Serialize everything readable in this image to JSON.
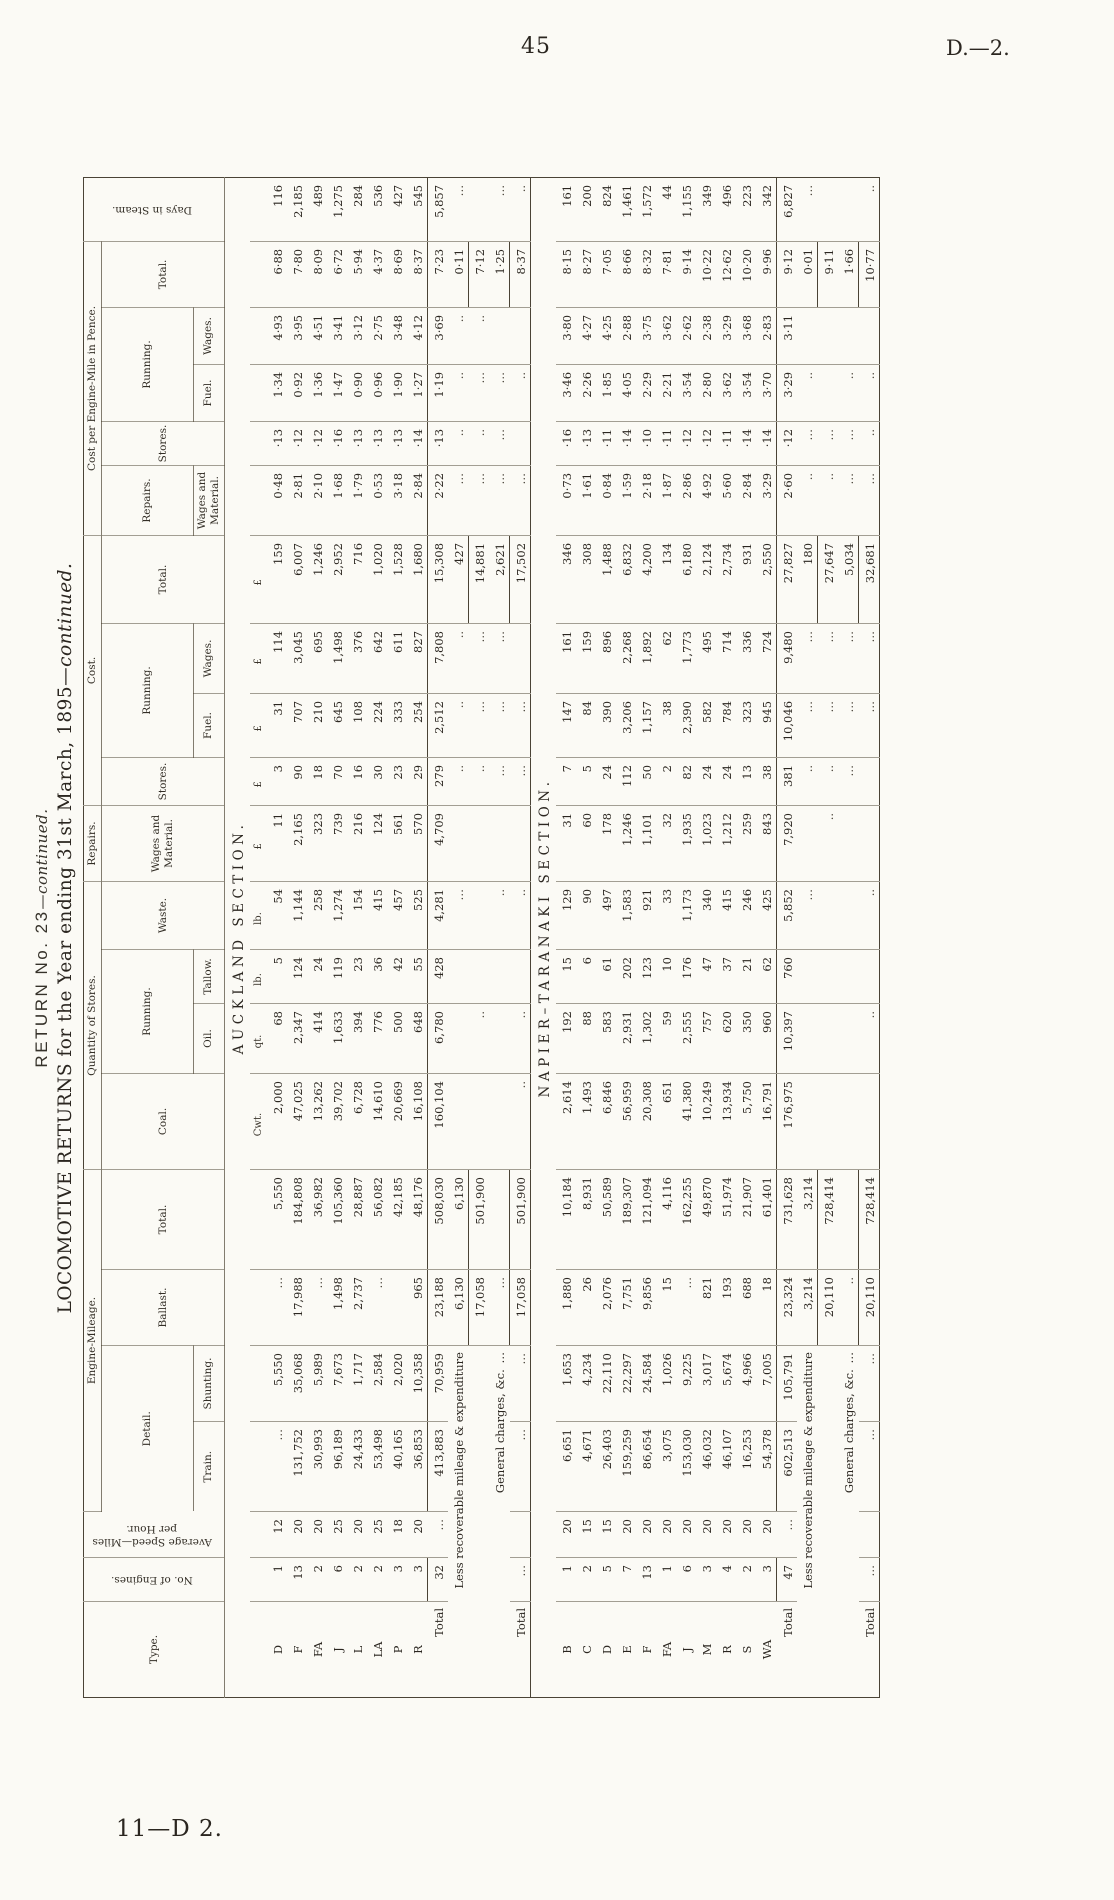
{
  "page": {
    "number": "45",
    "ref": "D.—2.",
    "footer": "11—D  2."
  },
  "title": {
    "line1_main": "RETURN  No.  23",
    "line1_cont": "—continued.",
    "line2_main": "LOCOMOTIVE RETURNS for the Year ending 31st March, 1895",
    "line2_cont": "—continued."
  },
  "table": {
    "head": {
      "type": "Type.",
      "engines": "No. of Engines.",
      "speed": "Average Speed—Miles per Hour.",
      "mileage": "Engine-Mileage.",
      "detail": "Detail.",
      "train": "Train.",
      "shunting": "Shunting.",
      "ballast": "Ballast.",
      "total": "Total.",
      "qty": "Quantity of Stores.",
      "coal": "Coal.",
      "running": "Running.",
      "oil": "Oil.",
      "tallow": "Tallow.",
      "waste": "Waste.",
      "repairs": "Repairs.",
      "wam": "Wages and Material.",
      "cost": "Cost.",
      "stores": "Stores.",
      "fuel": "Fuel.",
      "wages": "Wages.",
      "pence": "Cost per Engine-Mile in Pence.",
      "days": "Days in Steam."
    },
    "units": [
      "",
      "",
      "",
      "",
      "",
      "",
      "",
      "Cwt.",
      "qt.",
      "lb.",
      "lb.",
      "£",
      "£",
      "£",
      "£",
      "£",
      "",
      "",
      "",
      "",
      "",
      ""
    ],
    "sections": [
      {
        "caption": "AUCKLAND SECTION.",
        "show_units": true,
        "rows": [
          [
            "D",
            "1",
            "12",
            "…",
            "5,550",
            "…",
            "5,550",
            "2,000",
            "68",
            "5",
            "54",
            "11",
            "3",
            "31",
            "114",
            "159",
            "0·48",
            "·13",
            "1·34",
            "4·93",
            "6·88",
            "116"
          ],
          [
            "F",
            "13",
            "20",
            "131,752",
            "35,068",
            "17,988",
            "184,808",
            "47,025",
            "2,347",
            "124",
            "1,144",
            "2,165",
            "90",
            "707",
            "3,045",
            "6,007",
            "2·81",
            "·12",
            "0·92",
            "3·95",
            "7·80",
            "2,185"
          ],
          [
            "FA",
            "2",
            "20",
            "30,993",
            "5,989",
            "…",
            "36,982",
            "13,262",
            "414",
            "24",
            "258",
            "323",
            "18",
            "210",
            "695",
            "1,246",
            "2·10",
            "·12",
            "1·36",
            "4·51",
            "8·09",
            "489"
          ],
          [
            "J",
            "6",
            "25",
            "96,189",
            "7,673",
            "1,498",
            "105,360",
            "39,702",
            "1,633",
            "119",
            "1,274",
            "739",
            "70",
            "645",
            "1,498",
            "2,952",
            "1·68",
            "·16",
            "1·47",
            "3·41",
            "6·72",
            "1,275"
          ],
          [
            "L",
            "2",
            "20",
            "24,433",
            "1,717",
            "2,737",
            "28,887",
            "6,728",
            "394",
            "23",
            "154",
            "216",
            "16",
            "108",
            "376",
            "716",
            "1·79",
            "·13",
            "0·90",
            "3·12",
            "5·94",
            "284"
          ],
          [
            "LA",
            "2",
            "25",
            "53,498",
            "2,584",
            "…",
            "56,082",
            "14,610",
            "776",
            "36",
            "415",
            "124",
            "30",
            "224",
            "642",
            "1,020",
            "0·53",
            "·13",
            "0·96",
            "2·75",
            "4·37",
            "536"
          ],
          [
            "P",
            "3",
            "18",
            "40,165",
            "2,020",
            "",
            "42,185",
            "20,669",
            "500",
            "42",
            "457",
            "561",
            "23",
            "333",
            "611",
            "1,528",
            "3·18",
            "·13",
            "1·90",
            "3·48",
            "8·69",
            "427"
          ],
          [
            "R",
            "3",
            "20",
            "36,853",
            "10,358",
            "965",
            "48,176",
            "16,108",
            "648",
            "55",
            "525",
            "570",
            "29",
            "254",
            "827",
            "1,680",
            "2·84",
            "·14",
            "1·27",
            "4·12",
            "8·37",
            "545"
          ]
        ],
        "totals": [
          {
            "span": 1,
            "rule": true,
            "cells": [
              "Total",
              "32",
              "…",
              "413,883",
              "70,959",
              "23,188",
              "508,030",
              "160,104",
              "6,780",
              "428",
              "4,281",
              "4,709",
              "279",
              "2,512",
              "7,808",
              "15,308",
              "2·22",
              "·13",
              "1·19",
              "3·69",
              "7·23",
              "5,857"
            ]
          },
          {
            "span": 5,
            "rule": false,
            "cells": [
              "Less recoverable mileage & expenditure",
              "6,130",
              "6,130",
              "",
              "",
              "",
              "…",
              "",
              "..",
              "..",
              "..",
              "427",
              "…",
              "..",
              "..",
              "..",
              "0·11",
              "…"
            ]
          },
          {
            "span": 5,
            "rule": true,
            "cells": [
              "",
              "17,058",
              "501,900",
              "",
              "..",
              "",
              "",
              "",
              "..",
              "…",
              "…",
              "14,881",
              "…",
              "..",
              "…",
              "..",
              "7·12",
              ""
            ]
          },
          {
            "span": 5,
            "rule": false,
            "cells": [
              "General charges, &c. …",
              "…",
              "",
              "",
              "",
              "",
              "..",
              "",
              "…",
              "…",
              "…",
              "2,621",
              "…",
              "…",
              "…",
              "",
              "1·25",
              "…"
            ]
          },
          {
            "span": 1,
            "rule": true,
            "cells": [
              "Total",
              "…",
              "",
              "…",
              "…",
              "17,058",
              "501,900",
              "..",
              "..",
              "",
              "..",
              "",
              "…",
              "…",
              "",
              "17,502",
              "…",
              "",
              "..",
              "",
              "8·37",
              ".."
            ]
          }
        ]
      },
      {
        "caption": "NAPIER–TARANAKI SECTION.",
        "show_units": false,
        "rows": [
          [
            "B",
            "1",
            "20",
            "6,651",
            "1,653",
            "1,880",
            "10,184",
            "2,614",
            "192",
            "15",
            "129",
            "31",
            "7",
            "147",
            "161",
            "346",
            "0·73",
            "·16",
            "3·46",
            "3·80",
            "8·15",
            "161"
          ],
          [
            "C",
            "2",
            "15",
            "4,671",
            "4,234",
            "26",
            "8,931",
            "1,493",
            "88",
            "6",
            "90",
            "60",
            "5",
            "84",
            "159",
            "308",
            "1·61",
            "·13",
            "2·26",
            "4·27",
            "8·27",
            "200"
          ],
          [
            "D",
            "5",
            "15",
            "26,403",
            "22,110",
            "2,076",
            "50,589",
            "6,846",
            "583",
            "61",
            "497",
            "178",
            "24",
            "390",
            "896",
            "1,488",
            "0·84",
            "·11",
            "1·85",
            "4·25",
            "7·05",
            "824"
          ],
          [
            "E",
            "7",
            "20",
            "159,259",
            "22,297",
            "7,751",
            "189,307",
            "56,959",
            "2,931",
            "202",
            "1,583",
            "1,246",
            "112",
            "3,206",
            "2,268",
            "6,832",
            "1·59",
            "·14",
            "4·05",
            "2·88",
            "8·66",
            "1,461"
          ],
          [
            "F",
            "13",
            "20",
            "86,654",
            "24,584",
            "9,856",
            "121,094",
            "20,308",
            "1,302",
            "123",
            "921",
            "1,101",
            "50",
            "1,157",
            "1,892",
            "4,200",
            "2·18",
            "·10",
            "2·29",
            "3·75",
            "8·32",
            "1,572"
          ],
          [
            "FA",
            "1",
            "20",
            "3,075",
            "1,026",
            "15",
            "4,116",
            "651",
            "59",
            "10",
            "33",
            "32",
            "2",
            "38",
            "62",
            "134",
            "1·87",
            "·11",
            "2·21",
            "3·62",
            "7·81",
            "44"
          ],
          [
            "J",
            "6",
            "20",
            "153,030",
            "9,225",
            "…",
            "162,255",
            "41,380",
            "2,555",
            "176",
            "1,173",
            "1,935",
            "82",
            "2,390",
            "1,773",
            "6,180",
            "2·86",
            "·12",
            "3·54",
            "2·62",
            "9·14",
            "1,155"
          ],
          [
            "M",
            "3",
            "20",
            "46,032",
            "3,017",
            "821",
            "49,870",
            "10,249",
            "757",
            "47",
            "340",
            "1,023",
            "24",
            "582",
            "495",
            "2,124",
            "4·92",
            "·12",
            "2·80",
            "2·38",
            "10·22",
            "349"
          ],
          [
            "R",
            "4",
            "20",
            "46,107",
            "5,674",
            "193",
            "51,974",
            "13,934",
            "620",
            "37",
            "415",
            "1,212",
            "24",
            "784",
            "714",
            "2,734",
            "5·60",
            "·11",
            "3·62",
            "3·29",
            "12·62",
            "496"
          ],
          [
            "S",
            "2",
            "20",
            "16,253",
            "4,966",
            "688",
            "21,907",
            "5,750",
            "350",
            "21",
            "246",
            "259",
            "13",
            "323",
            "336",
            "931",
            "2·84",
            "·14",
            "3·54",
            "3·68",
            "10·20",
            "223"
          ],
          [
            "WA",
            "3",
            "20",
            "54,378",
            "7,005",
            "18",
            "61,401",
            "16,791",
            "960",
            "62",
            "425",
            "843",
            "38",
            "945",
            "724",
            "2,550",
            "3·29",
            "·14",
            "3·70",
            "2·83",
            "9·96",
            "342"
          ]
        ],
        "totals": [
          {
            "span": 1,
            "rule": true,
            "cells": [
              "Total",
              "47",
              "…",
              "602,513",
              "105,791",
              "23,324",
              "731,628",
              "176,975",
              "10,397",
              "760",
              "5,852",
              "7,920",
              "381",
              "10,046",
              "9,480",
              "27,827",
              "2·60",
              "·12",
              "3·29",
              "3·11",
              "9·12",
              "6,827"
            ]
          },
          {
            "span": 5,
            "rule": false,
            "cells": [
              "Less recoverable mileage & expenditure",
              "3,214",
              "3,214",
              "",
              "",
              "",
              "…",
              "",
              "..",
              "…",
              "…",
              "180",
              "..",
              "…",
              "..",
              "",
              "0·01",
              "…"
            ]
          },
          {
            "span": 5,
            "rule": true,
            "cells": [
              "",
              "20,110",
              "728,414",
              "",
              "",
              "",
              "",
              "..",
              "..",
              "…",
              "…",
              "27,647",
              "..",
              "…",
              "",
              "",
              "9·11",
              ""
            ]
          },
          {
            "span": 5,
            "rule": false,
            "cells": [
              "General charges, &c. …",
              "..",
              "",
              "",
              "",
              "",
              "",
              "",
              "…",
              "…",
              "…",
              "5,034",
              "…",
              "…",
              "..",
              "",
              "1·66",
              ""
            ]
          },
          {
            "span": 1,
            "rule": true,
            "cells": [
              "Total",
              "…",
              "",
              "…",
              "…",
              "20,110",
              "728,414",
              "",
              "..",
              "",
              "..",
              "",
              "",
              "…",
              "…",
              "32,681",
              "…",
              "..",
              "..",
              "",
              "10·77",
              ".."
            ]
          }
        ]
      }
    ]
  }
}
